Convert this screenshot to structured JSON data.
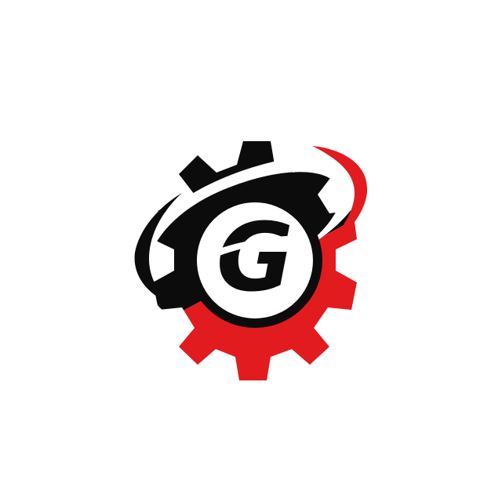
{
  "logo": {
    "letter": "G",
    "colors": {
      "background": "#ffffff",
      "gear_dark": "#0c0c0c",
      "gear_accent": "#e21b1f",
      "swoosh": "#ffffff"
    }
  }
}
